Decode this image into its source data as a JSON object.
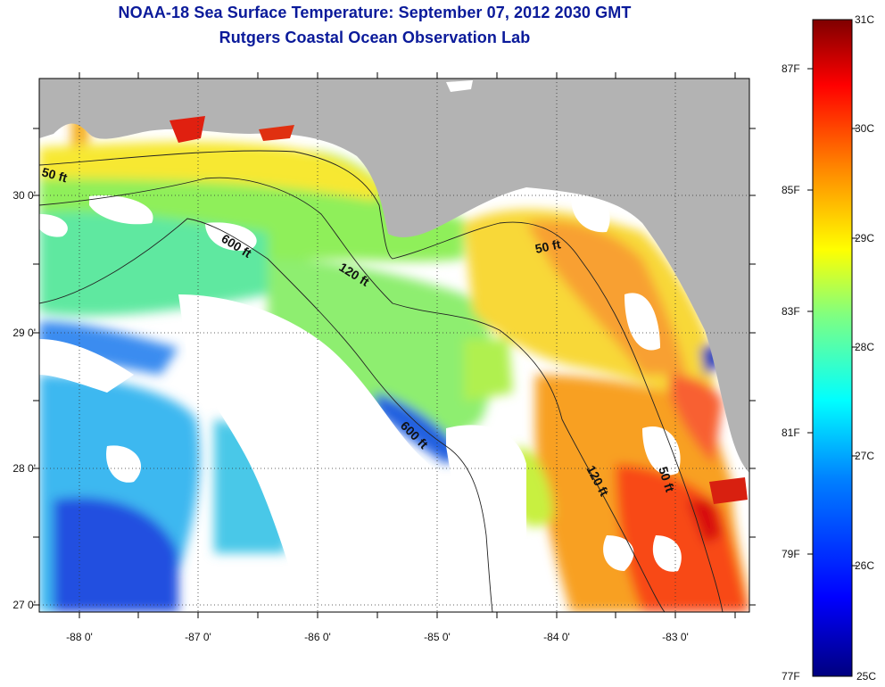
{
  "header": {
    "title": "NOAA-18 Sea Surface Temperature:  September 07, 2012 2030 GMT",
    "subtitle": "Rutgers Coastal Ocean Observation Lab"
  },
  "map": {
    "lon_ticks": [
      "-88 0'",
      "-87 0'",
      "-86 0'",
      "-85 0'",
      "-84 0'",
      "-83 0'"
    ],
    "lat_ticks": [
      "30 0'",
      "29 0'",
      "28 0'",
      "27 0'"
    ],
    "contour_labels": [
      "50 ft",
      "600 ft",
      "120 ft",
      "50 ft",
      "600 ft",
      "120 ft",
      "50 ft"
    ]
  },
  "colorbar": {
    "celsius_labels": [
      "31C",
      "30C",
      "29C",
      "28C",
      "27C",
      "26C",
      "25C"
    ],
    "fahrenheit_labels": [
      "87F",
      "85F",
      "83F",
      "81F",
      "79F",
      "77F"
    ],
    "colors": [
      "#00007f",
      "#0000ff",
      "#0080ff",
      "#00ffff",
      "#80ff80",
      "#ffff00",
      "#ff8000",
      "#ff0000",
      "#7f0000"
    ]
  },
  "legend_colors": {
    "land": "#b3b3b3",
    "no_data": "#ffffff",
    "title": "#0a1a9a"
  }
}
